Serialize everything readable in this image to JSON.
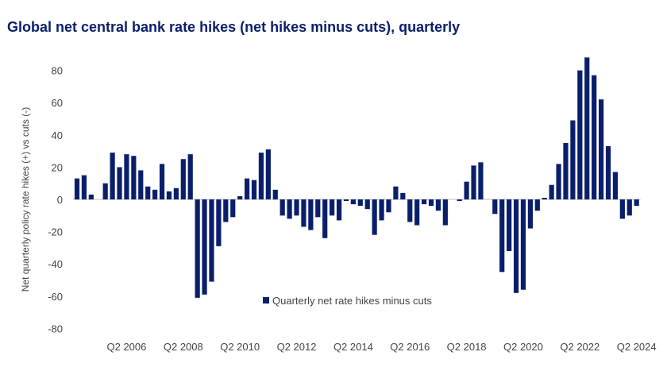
{
  "chart_data": {
    "type": "bar",
    "title": "Global net central bank rate hikes (net hikes minus cuts), quarterly",
    "ylabel": "Net quarterly policy rate hikes (+) vs cuts (-)",
    "xlabel": "",
    "ylim": [
      -80,
      90
    ],
    "y_ticks": [
      80,
      60,
      40,
      20,
      0,
      -20,
      -40,
      -60,
      -80
    ],
    "x_tick_labels": [
      "Q2 2006",
      "Q2 2008",
      "Q2 2010",
      "Q2 2012",
      "Q2 2014",
      "Q2 2016",
      "Q2 2018",
      "Q2 2020",
      "Q2 2022",
      "Q2 2024"
    ],
    "grid": false,
    "legend_position": "bottom-center",
    "bar_color": "#0a1f6b",
    "categories": [
      "Q3 2004",
      "Q4 2004",
      "Q1 2005",
      "Q2 2005",
      "Q3 2005",
      "Q4 2005",
      "Q1 2006",
      "Q2 2006",
      "Q3 2006",
      "Q4 2006",
      "Q1 2007",
      "Q2 2007",
      "Q3 2007",
      "Q4 2007",
      "Q1 2008",
      "Q2 2008",
      "Q3 2008",
      "Q4 2008",
      "Q1 2009",
      "Q2 2009",
      "Q3 2009",
      "Q4 2009",
      "Q1 2010",
      "Q2 2010",
      "Q3 2010",
      "Q4 2010",
      "Q1 2011",
      "Q2 2011",
      "Q3 2011",
      "Q4 2011",
      "Q1 2012",
      "Q2 2012",
      "Q3 2012",
      "Q4 2012",
      "Q1 2013",
      "Q2 2013",
      "Q3 2013",
      "Q4 2013",
      "Q1 2014",
      "Q2 2014",
      "Q3 2014",
      "Q4 2014",
      "Q1 2015",
      "Q2 2015",
      "Q3 2015",
      "Q4 2015",
      "Q1 2016",
      "Q2 2016",
      "Q3 2016",
      "Q4 2016",
      "Q1 2017",
      "Q2 2017",
      "Q3 2017",
      "Q4 2017",
      "Q1 2018",
      "Q2 2018",
      "Q3 2018",
      "Q4 2018",
      "Q1 2019",
      "Q2 2019",
      "Q3 2019",
      "Q4 2019",
      "Q1 2020",
      "Q2 2020",
      "Q3 2020",
      "Q4 2020",
      "Q1 2021",
      "Q2 2021",
      "Q3 2021",
      "Q4 2021",
      "Q1 2022",
      "Q2 2022",
      "Q3 2022",
      "Q4 2022",
      "Q1 2023",
      "Q2 2023",
      "Q3 2023",
      "Q4 2023",
      "Q1 2024",
      "Q2 2024"
    ],
    "series": [
      {
        "name": "Quarterly net rate hikes minus cuts",
        "values": [
          13,
          15,
          3,
          0,
          10,
          29,
          20,
          28,
          27,
          18,
          8,
          6,
          22,
          5,
          7,
          25,
          28,
          -61,
          -59,
          -51,
          -29,
          -14,
          -11,
          2,
          13,
          12,
          29,
          31,
          6,
          -10,
          -12,
          -10,
          -17,
          -19,
          -11,
          -24,
          -10,
          -13,
          -1,
          -3,
          -4,
          -6,
          -22,
          -13,
          -8,
          8,
          4,
          -14,
          -16,
          -3,
          -4,
          -7,
          -16,
          0,
          -1,
          11,
          21,
          23,
          0,
          -9,
          -45,
          -32,
          -58,
          -56,
          -18,
          -7,
          1,
          9,
          22,
          35,
          49,
          80,
          88,
          77,
          62,
          33,
          17,
          -12,
          -10,
          -4
        ]
      }
    ]
  }
}
